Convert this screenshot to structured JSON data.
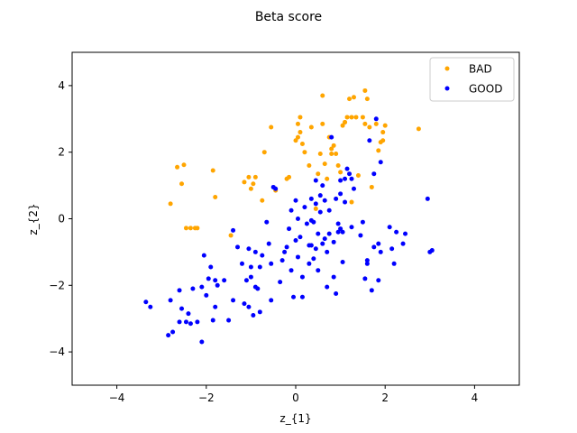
{
  "chart_data": {
    "type": "scatter",
    "title": "Beta score",
    "xlabel": "z_{1}",
    "ylabel": "z_{2}",
    "xlim": [
      -5,
      5
    ],
    "ylim": [
      -5,
      5
    ],
    "xticks": [
      -4,
      -2,
      0,
      2,
      4
    ],
    "yticks": [
      -4,
      -2,
      0,
      2,
      4
    ],
    "xtick_labels": [
      "−4",
      "−2",
      "0",
      "2",
      "4"
    ],
    "ytick_labels": [
      "−4",
      "−2",
      "0",
      "2",
      "4"
    ],
    "grid": false,
    "legend_position": "top-right",
    "series": [
      {
        "name": "BAD",
        "color": "#FFA500",
        "points": [
          [
            -2.8,
            0.45
          ],
          [
            -2.65,
            1.55
          ],
          [
            -2.55,
            1.05
          ],
          [
            -2.5,
            1.62
          ],
          [
            -2.45,
            -0.28
          ],
          [
            -2.35,
            -0.28
          ],
          [
            -2.25,
            -0.28
          ],
          [
            -2.2,
            -0.28
          ],
          [
            -1.85,
            1.45
          ],
          [
            -1.8,
            0.65
          ],
          [
            -1.45,
            -0.5
          ],
          [
            -1.15,
            1.1
          ],
          [
            -1.05,
            1.25
          ],
          [
            -1.0,
            0.9
          ],
          [
            -0.95,
            1.05
          ],
          [
            -0.9,
            1.25
          ],
          [
            -0.75,
            0.55
          ],
          [
            -0.7,
            2.0
          ],
          [
            -0.55,
            2.75
          ],
          [
            -0.45,
            0.85
          ],
          [
            -0.2,
            1.2
          ],
          [
            -0.15,
            1.25
          ],
          [
            0.0,
            2.35
          ],
          [
            0.05,
            2.45
          ],
          [
            0.05,
            2.85
          ],
          [
            0.1,
            3.05
          ],
          [
            0.1,
            2.6
          ],
          [
            0.15,
            2.25
          ],
          [
            0.2,
            2.0
          ],
          [
            0.3,
            1.6
          ],
          [
            0.35,
            2.75
          ],
          [
            0.45,
            0.3
          ],
          [
            0.5,
            1.35
          ],
          [
            0.55,
            1.95
          ],
          [
            0.6,
            2.85
          ],
          [
            0.6,
            3.7
          ],
          [
            0.65,
            1.65
          ],
          [
            0.7,
            1.2
          ],
          [
            0.75,
            2.45
          ],
          [
            0.8,
            2.1
          ],
          [
            0.8,
            1.95
          ],
          [
            0.85,
            2.2
          ],
          [
            0.9,
            1.95
          ],
          [
            0.95,
            1.6
          ],
          [
            1.0,
            1.4
          ],
          [
            1.05,
            2.8
          ],
          [
            1.1,
            2.9
          ],
          [
            1.15,
            3.05
          ],
          [
            1.2,
            3.6
          ],
          [
            1.25,
            3.05
          ],
          [
            1.3,
            3.65
          ],
          [
            1.35,
            3.05
          ],
          [
            1.4,
            1.3
          ],
          [
            1.5,
            3.05
          ],
          [
            1.55,
            2.85
          ],
          [
            1.55,
            3.85
          ],
          [
            1.6,
            3.6
          ],
          [
            1.65,
            2.75
          ],
          [
            1.7,
            0.95
          ],
          [
            1.8,
            2.85
          ],
          [
            1.85,
            2.05
          ],
          [
            1.9,
            2.3
          ],
          [
            1.95,
            2.35
          ],
          [
            1.95,
            2.6
          ],
          [
            2.0,
            2.8
          ],
          [
            2.75,
            2.7
          ],
          [
            1.25,
            0.5
          ],
          [
            1.1,
            2.9
          ]
        ]
      },
      {
        "name": "GOOD",
        "color": "#0000FF",
        "points": [
          [
            -3.35,
            -2.5
          ],
          [
            -3.25,
            -2.65
          ],
          [
            -2.85,
            -3.5
          ],
          [
            -2.8,
            -2.45
          ],
          [
            -2.75,
            -3.4
          ],
          [
            -2.6,
            -2.15
          ],
          [
            -2.6,
            -3.1
          ],
          [
            -2.55,
            -2.7
          ],
          [
            -2.45,
            -3.1
          ],
          [
            -2.4,
            -2.85
          ],
          [
            -2.35,
            -3.15
          ],
          [
            -2.3,
            -2.1
          ],
          [
            -2.2,
            -3.1
          ],
          [
            -2.1,
            -2.05
          ],
          [
            -2.1,
            -3.7
          ],
          [
            -2.05,
            -1.1
          ],
          [
            -2.0,
            -2.3
          ],
          [
            -1.95,
            -1.8
          ],
          [
            -1.9,
            -1.45
          ],
          [
            -1.85,
            -3.05
          ],
          [
            -1.8,
            -2.65
          ],
          [
            -1.8,
            -1.85
          ],
          [
            -1.75,
            -2.0
          ],
          [
            -1.6,
            -1.85
          ],
          [
            -1.5,
            -3.05
          ],
          [
            -1.4,
            -0.35
          ],
          [
            -1.4,
            -2.45
          ],
          [
            -1.3,
            -0.85
          ],
          [
            -1.2,
            -1.35
          ],
          [
            -1.15,
            -2.55
          ],
          [
            -1.1,
            -1.85
          ],
          [
            -1.05,
            -2.65
          ],
          [
            -1.05,
            -0.9
          ],
          [
            -1.0,
            -1.45
          ],
          [
            -1.0,
            -1.75
          ],
          [
            -0.95,
            -2.9
          ],
          [
            -0.9,
            -2.05
          ],
          [
            -0.9,
            -1.0
          ],
          [
            -0.85,
            -2.1
          ],
          [
            -0.8,
            -1.45
          ],
          [
            -0.8,
            -2.8
          ],
          [
            -0.75,
            -1.1
          ],
          [
            -0.65,
            -0.1
          ],
          [
            -0.6,
            -0.75
          ],
          [
            -0.55,
            -1.35
          ],
          [
            -0.55,
            -2.45
          ],
          [
            -0.5,
            0.95
          ],
          [
            -0.45,
            0.9
          ],
          [
            -0.35,
            -1.9
          ],
          [
            -0.3,
            -1.25
          ],
          [
            -0.2,
            -0.85
          ],
          [
            -0.15,
            -0.3
          ],
          [
            -0.1,
            0.25
          ],
          [
            -0.1,
            -1.55
          ],
          [
            -0.05,
            -2.35
          ],
          [
            0.0,
            0.55
          ],
          [
            0.0,
            -0.65
          ],
          [
            0.05,
            0.0
          ],
          [
            0.05,
            -1.15
          ],
          [
            0.1,
            -0.55
          ],
          [
            0.15,
            -1.75
          ],
          [
            0.15,
            -2.35
          ],
          [
            0.2,
            0.35
          ],
          [
            0.25,
            -0.15
          ],
          [
            0.3,
            -0.8
          ],
          [
            0.3,
            -1.35
          ],
          [
            0.35,
            0.6
          ],
          [
            0.35,
            -0.05
          ],
          [
            0.35,
            -0.8
          ],
          [
            0.4,
            -1.2
          ],
          [
            0.45,
            1.15
          ],
          [
            0.45,
            0.45
          ],
          [
            0.45,
            -0.9
          ],
          [
            0.5,
            -1.55
          ],
          [
            0.5,
            -0.45
          ],
          [
            0.55,
            0.2
          ],
          [
            0.6,
            1.0
          ],
          [
            0.6,
            -0.75
          ],
          [
            0.65,
            -0.6
          ],
          [
            0.7,
            -1.0
          ],
          [
            0.7,
            -2.05
          ],
          [
            0.75,
            0.25
          ],
          [
            0.75,
            -0.45
          ],
          [
            0.8,
            2.45
          ],
          [
            0.85,
            -1.75
          ],
          [
            0.85,
            -0.7
          ],
          [
            0.9,
            0.6
          ],
          [
            0.9,
            -2.25
          ],
          [
            0.95,
            -0.15
          ],
          [
            1.0,
            0.75
          ],
          [
            1.0,
            1.15
          ],
          [
            1.05,
            -0.4
          ],
          [
            1.05,
            -1.3
          ],
          [
            1.1,
            1.2
          ],
          [
            1.1,
            0.5
          ],
          [
            1.15,
            1.5
          ],
          [
            1.2,
            1.35
          ],
          [
            1.25,
            1.2
          ],
          [
            1.25,
            -0.25
          ],
          [
            1.3,
            0.9
          ],
          [
            1.45,
            -0.5
          ],
          [
            1.5,
            -0.1
          ],
          [
            1.55,
            -1.8
          ],
          [
            1.6,
            -1.25
          ],
          [
            1.6,
            -1.35
          ],
          [
            1.65,
            2.35
          ],
          [
            1.7,
            -2.15
          ],
          [
            1.75,
            1.35
          ],
          [
            1.75,
            -0.85
          ],
          [
            1.8,
            3.0
          ],
          [
            1.85,
            -1.85
          ],
          [
            1.85,
            -0.75
          ],
          [
            1.9,
            1.7
          ],
          [
            1.9,
            -1.0
          ],
          [
            2.1,
            -0.25
          ],
          [
            2.15,
            -0.9
          ],
          [
            2.2,
            -1.35
          ],
          [
            2.25,
            -0.4
          ],
          [
            2.4,
            -0.75
          ],
          [
            2.45,
            -0.45
          ],
          [
            2.95,
            0.6
          ],
          [
            3.0,
            -1.0
          ],
          [
            3.05,
            -0.95
          ],
          [
            1.0,
            -0.3
          ],
          [
            0.55,
            0.7
          ],
          [
            0.95,
            -0.4
          ],
          [
            -0.25,
            -1.0
          ],
          [
            0.4,
            -0.1
          ],
          [
            0.65,
            0.55
          ]
        ]
      }
    ]
  }
}
